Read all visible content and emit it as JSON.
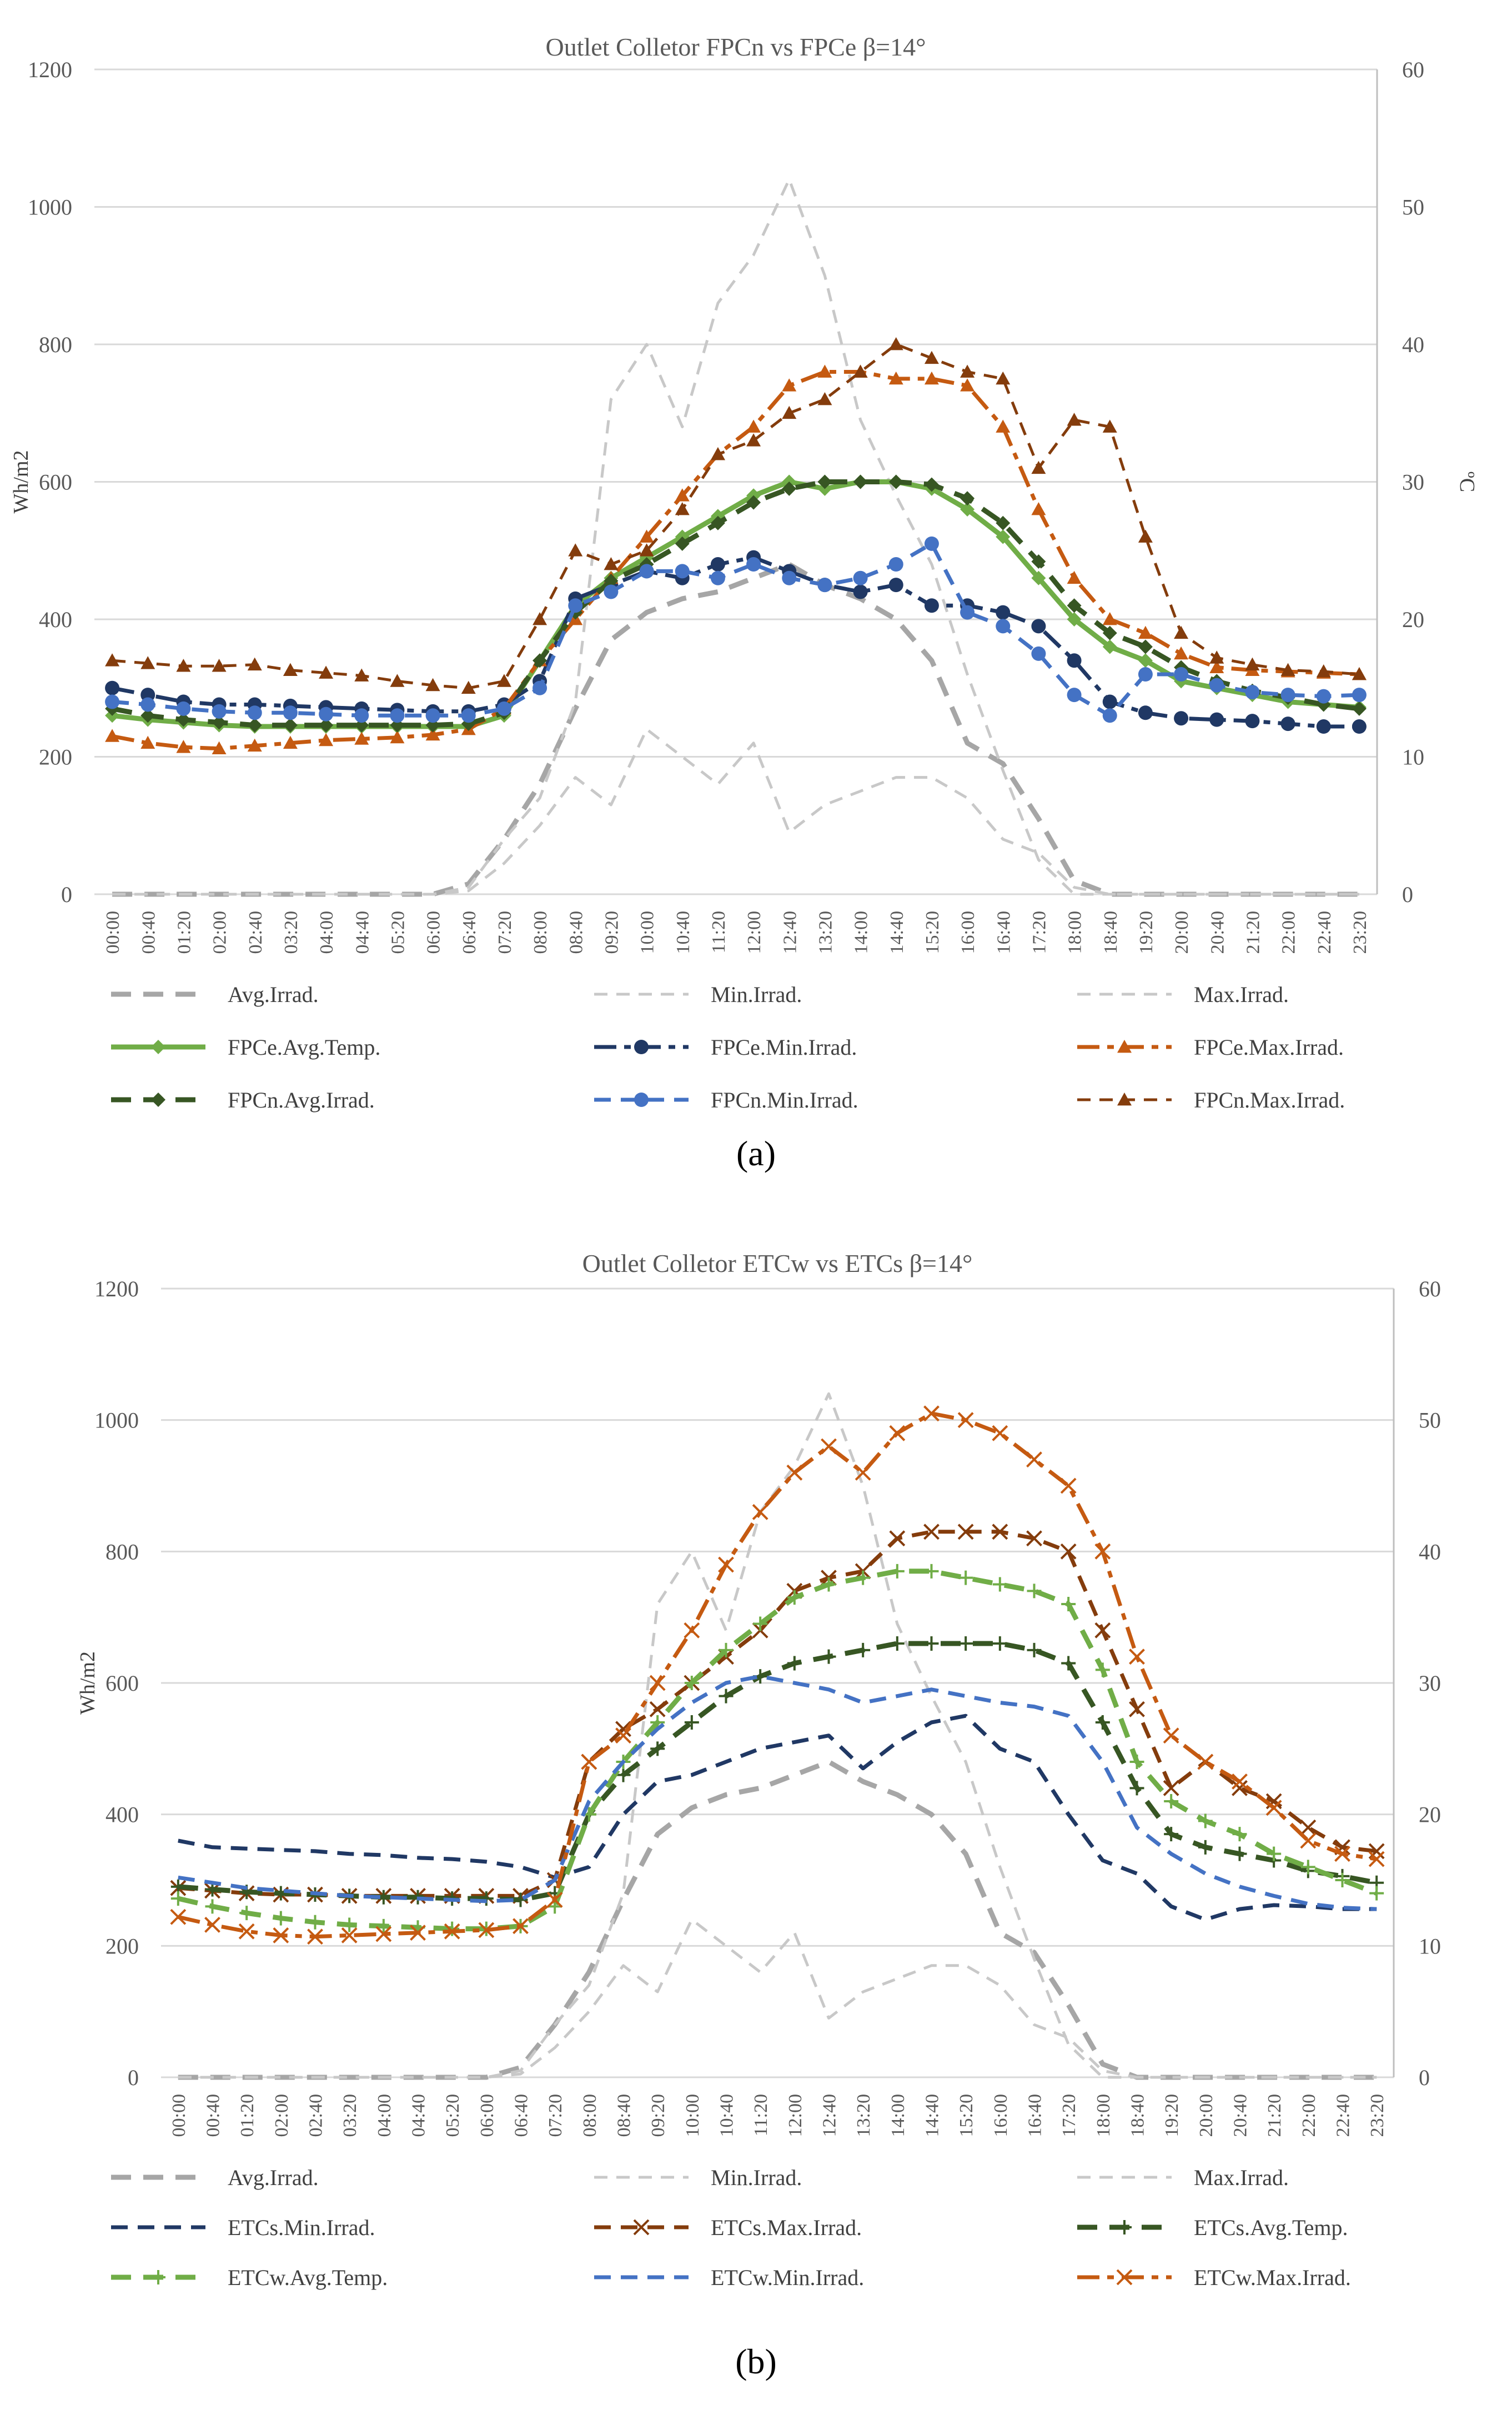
{
  "panel_labels": [
    "(a)",
    "(b)"
  ],
  "chart_data": [
    {
      "type": "line",
      "title": "Outlet Colletor FPCn vs FPCe β=14°",
      "ylabel": "Wh/m2",
      "y2label": "ºC",
      "ylim": [
        0,
        1200
      ],
      "y2lim": [
        0,
        60
      ],
      "yticks": [
        "0",
        "200",
        "400",
        "600",
        "800",
        "1000",
        "1200"
      ],
      "y2ticks": [
        "0",
        "10",
        "20",
        "30",
        "40",
        "50",
        "60"
      ],
      "grid": true,
      "legend_position": "bottom",
      "x": [
        "00:00",
        "00:40",
        "01:20",
        "02:00",
        "02:40",
        "03:20",
        "04:00",
        "04:40",
        "05:20",
        "06:00",
        "06:40",
        "07:20",
        "08:00",
        "08:40",
        "09:20",
        "10:00",
        "10:40",
        "11:20",
        "12:00",
        "12:40",
        "13:20",
        "14:00",
        "14:40",
        "15:20",
        "16:00",
        "16:40",
        "17:20",
        "18:00",
        "18:40",
        "19:20",
        "20:00",
        "20:40",
        "21:20",
        "22:00",
        "22:40",
        "23:20"
      ],
      "series": [
        {
          "name": "Avg.Irrad.",
          "axis": "left",
          "color": "#a6a6a6",
          "style": "dash-thick",
          "marker": "none",
          "values": [
            0,
            0,
            0,
            0,
            0,
            0,
            0,
            0,
            0,
            0,
            15,
            80,
            160,
            270,
            370,
            410,
            430,
            440,
            460,
            480,
            450,
            430,
            400,
            340,
            220,
            190,
            110,
            20,
            0,
            0,
            0,
            0,
            0,
            0,
            0,
            0
          ]
        },
        {
          "name": "Min.Irrad.",
          "axis": "left",
          "color": "#c8c8c8",
          "style": "dash-thin",
          "marker": "none",
          "values": [
            0,
            0,
            0,
            0,
            0,
            0,
            0,
            0,
            0,
            0,
            5,
            45,
            100,
            170,
            130,
            240,
            200,
            160,
            220,
            90,
            130,
            150,
            170,
            170,
            140,
            80,
            60,
            10,
            0,
            0,
            0,
            0,
            0,
            0,
            0,
            0
          ]
        },
        {
          "name": "Max.Irrad.",
          "axis": "left",
          "color": "#c8c8c8",
          "style": "dash-thin",
          "marker": "none",
          "values": [
            0,
            0,
            0,
            0,
            0,
            0,
            0,
            0,
            0,
            0,
            10,
            80,
            140,
            280,
            720,
            800,
            680,
            860,
            930,
            1040,
            900,
            690,
            580,
            480,
            320,
            180,
            50,
            0,
            0,
            0,
            0,
            0,
            0,
            0,
            0,
            0
          ]
        },
        {
          "name": "FPCe.Avg.Temp.",
          "axis": "right",
          "color": "#70ad47",
          "style": "solid",
          "marker": "diamond",
          "values": [
            13,
            12.7,
            12.5,
            12.3,
            12.2,
            12.2,
            12.2,
            12.2,
            12.2,
            12.2,
            12.2,
            13,
            17,
            21,
            23,
            24.5,
            26,
            27.5,
            29,
            30,
            29.5,
            30,
            30,
            29.5,
            28,
            26,
            23,
            20,
            18,
            17,
            15.5,
            15,
            14.5,
            14,
            13.8,
            13.6
          ]
        },
        {
          "name": "FPCe.Min.Irrad.",
          "axis": "right",
          "color": "#203864",
          "style": "dash-dot",
          "marker": "circle",
          "values": [
            15,
            14.5,
            14,
            13.8,
            13.8,
            13.7,
            13.6,
            13.5,
            13.4,
            13.3,
            13.3,
            13.8,
            15.5,
            21.5,
            22.5,
            23.5,
            23,
            24,
            24.5,
            23.5,
            22.5,
            22,
            22.5,
            21,
            21,
            20.5,
            19.5,
            17,
            14,
            13.2,
            12.8,
            12.7,
            12.6,
            12.4,
            12.2,
            12.2
          ]
        },
        {
          "name": "FPCe.Max.Irrad.",
          "axis": "right",
          "color": "#c55a11",
          "style": "dash-dot",
          "marker": "triangle",
          "values": [
            11.5,
            11,
            10.7,
            10.6,
            10.8,
            11,
            11.2,
            11.3,
            11.4,
            11.6,
            12,
            13.5,
            17,
            20,
            23,
            26,
            29,
            32,
            34,
            37,
            38,
            38,
            37.5,
            37.5,
            37,
            34,
            28,
            23,
            20,
            19,
            17.5,
            16.5,
            16.3,
            16.2,
            16.1,
            16
          ]
        },
        {
          "name": "FPCn.Avg.Irrad.",
          "axis": "right",
          "color": "#375623",
          "style": "dash-thick",
          "marker": "diamond",
          "values": [
            13.5,
            13,
            12.7,
            12.5,
            12.3,
            12.3,
            12.3,
            12.3,
            12.3,
            12.3,
            12.4,
            13.2,
            17,
            20.5,
            22.8,
            24,
            25.5,
            27,
            28.5,
            29.5,
            30,
            30,
            30,
            29.8,
            28.8,
            27,
            24.2,
            21,
            19,
            18,
            16.5,
            15.5,
            14.8,
            14.3,
            13.8,
            13.5
          ]
        },
        {
          "name": "FPCn.Min.Irrad.",
          "axis": "right",
          "color": "#4472c4",
          "style": "dash",
          "marker": "circle",
          "values": [
            14,
            13.8,
            13.5,
            13.3,
            13.2,
            13.2,
            13.1,
            13,
            13,
            13,
            13,
            13.5,
            15,
            21,
            22,
            23.5,
            23.5,
            23,
            24,
            23,
            22.5,
            23,
            24,
            25.5,
            20.5,
            19.5,
            17.5,
            14.5,
            13,
            16,
            16,
            15.2,
            14.7,
            14.5,
            14.4,
            14.5
          ]
        },
        {
          "name": "FPCn.Max.Irrad.",
          "axis": "right",
          "color": "#843c0c",
          "style": "dash-thin",
          "marker": "triangle",
          "values": [
            17,
            16.8,
            16.6,
            16.6,
            16.7,
            16.3,
            16.1,
            15.9,
            15.5,
            15.2,
            15,
            15.5,
            20,
            25,
            24,
            25,
            28,
            32,
            33,
            35,
            36,
            38,
            40,
            39,
            38,
            37.5,
            31,
            34.5,
            34,
            26,
            19,
            17.2,
            16.7,
            16.3,
            16.2,
            16
          ]
        }
      ]
    },
    {
      "type": "line",
      "title": "Outlet Colletor ETCw vs ETCs   β=14°",
      "ylabel": "Wh/m2",
      "y2label": "",
      "ylim": [
        0,
        1200
      ],
      "y2lim": [
        0,
        60
      ],
      "yticks": [
        "0",
        "200",
        "400",
        "600",
        "800",
        "1000",
        "1200"
      ],
      "y2ticks": [
        "0",
        "10",
        "20",
        "30",
        "40",
        "50",
        "60"
      ],
      "grid": true,
      "legend_position": "bottom",
      "x": [
        "00:00",
        "00:40",
        "01:20",
        "02:00",
        "02:40",
        "03:20",
        "04:00",
        "04:40",
        "05:20",
        "06:00",
        "06:40",
        "07:20",
        "08:00",
        "08:40",
        "09:20",
        "10:00",
        "10:40",
        "11:20",
        "12:00",
        "12:40",
        "13:20",
        "14:00",
        "14:40",
        "15:20",
        "16:00",
        "16:40",
        "17:20",
        "18:00",
        "18:40",
        "19:20",
        "20:00",
        "20:40",
        "21:20",
        "22:00",
        "22:40",
        "23:20"
      ],
      "series": [
        {
          "name": "Avg.Irrad.",
          "axis": "left",
          "color": "#a6a6a6",
          "style": "dash-thick",
          "marker": "none",
          "values": [
            0,
            0,
            0,
            0,
            0,
            0,
            0,
            0,
            0,
            0,
            15,
            80,
            160,
            270,
            370,
            410,
            430,
            440,
            460,
            480,
            450,
            430,
            400,
            340,
            220,
            190,
            110,
            20,
            0,
            0,
            0,
            0,
            0,
            0,
            0,
            0
          ]
        },
        {
          "name": "Min.Irrad.",
          "axis": "left",
          "color": "#c8c8c8",
          "style": "dash-thin",
          "marker": "none",
          "values": [
            0,
            0,
            0,
            0,
            0,
            0,
            0,
            0,
            0,
            0,
            5,
            45,
            100,
            170,
            130,
            240,
            200,
            160,
            220,
            90,
            130,
            150,
            170,
            170,
            140,
            80,
            60,
            10,
            0,
            0,
            0,
            0,
            0,
            0,
            0,
            0
          ]
        },
        {
          "name": "Max.Irrad.",
          "axis": "left",
          "color": "#c8c8c8",
          "style": "dash-thin",
          "marker": "none",
          "values": [
            0,
            0,
            0,
            0,
            0,
            0,
            0,
            0,
            0,
            0,
            10,
            80,
            140,
            280,
            720,
            800,
            680,
            860,
            930,
            1040,
            900,
            690,
            580,
            480,
            320,
            180,
            50,
            0,
            0,
            0,
            0,
            0,
            0,
            0,
            0,
            0
          ]
        },
        {
          "name": "ETCs.Min.Irrad.",
          "axis": "right",
          "color": "#203864",
          "style": "dash",
          "marker": "none",
          "values": [
            18,
            17.5,
            17.4,
            17.3,
            17.2,
            17,
            16.9,
            16.7,
            16.6,
            16.4,
            16,
            15.2,
            16,
            20,
            22.5,
            23,
            24,
            25,
            25.5,
            26,
            23.5,
            25.5,
            27,
            27.5,
            25,
            24,
            20,
            16.5,
            15.5,
            13,
            12,
            12.8,
            13.1,
            13,
            12.8,
            12.8
          ]
        },
        {
          "name": "ETCs.Max.Irrad.",
          "axis": "right",
          "color": "#843c0c",
          "style": "dash",
          "marker": "x",
          "values": [
            14.4,
            14.2,
            14,
            13.9,
            13.9,
            13.8,
            13.8,
            13.8,
            13.8,
            13.8,
            13.8,
            15,
            24,
            26.5,
            28,
            30,
            32,
            34,
            37,
            38,
            38.5,
            41,
            41.5,
            41.5,
            41.5,
            41,
            40,
            34,
            28,
            22,
            24,
            22,
            21,
            19,
            17.5,
            17.2
          ]
        },
        {
          "name": "ETCs.Avg.Temp.",
          "axis": "right",
          "color": "#375623",
          "style": "dash-thick",
          "marker": "plus",
          "values": [
            14.5,
            14.3,
            14.1,
            14,
            13.9,
            13.8,
            13.7,
            13.7,
            13.6,
            13.6,
            13.5,
            14,
            20,
            23,
            25,
            27,
            29,
            30.5,
            31.5,
            32,
            32.5,
            33,
            33,
            33,
            33,
            32.5,
            31.5,
            27,
            22,
            18.5,
            17.5,
            17,
            16.5,
            15.7,
            15.3,
            14.8
          ]
        },
        {
          "name": "ETCw.Avg.Temp.",
          "axis": "right",
          "color": "#70ad47",
          "style": "dash-thick",
          "marker": "plus",
          "values": [
            13.6,
            13,
            12.5,
            12.1,
            11.8,
            11.6,
            11.5,
            11.4,
            11.3,
            11.3,
            11.5,
            13,
            20,
            24,
            27,
            30,
            32.5,
            34.5,
            36.5,
            37.5,
            38,
            38.5,
            38.5,
            38,
            37.5,
            37,
            36,
            31,
            24,
            21,
            19.5,
            18.5,
            17,
            16,
            15,
            14
          ]
        },
        {
          "name": "ETCw.Min.Irrad.",
          "axis": "right",
          "color": "#4472c4",
          "style": "dash",
          "marker": "none",
          "values": [
            15.2,
            14.8,
            14.4,
            14.2,
            14,
            13.8,
            13.7,
            13.6,
            13.5,
            13.4,
            13.5,
            15,
            21,
            24,
            26.5,
            28.5,
            30,
            30.5,
            30,
            29.5,
            28.5,
            29,
            29.5,
            29,
            28.5,
            28.2,
            27.5,
            24,
            19,
            17,
            15.5,
            14.5,
            13.8,
            13.2,
            12.9,
            12.8
          ]
        },
        {
          "name": "ETCw.Max.Irrad.",
          "axis": "right",
          "color": "#c55a11",
          "style": "dash-dot",
          "marker": "x",
          "values": [
            12.2,
            11.6,
            11.1,
            10.8,
            10.7,
            10.8,
            10.9,
            11,
            11.1,
            11.2,
            11.5,
            13.5,
            24,
            26,
            30,
            34,
            39,
            43,
            46,
            48,
            46,
            49,
            50.5,
            50,
            49,
            47,
            45,
            40,
            32,
            26,
            24,
            22.5,
            20.5,
            18,
            17,
            16.6
          ]
        }
      ]
    }
  ]
}
